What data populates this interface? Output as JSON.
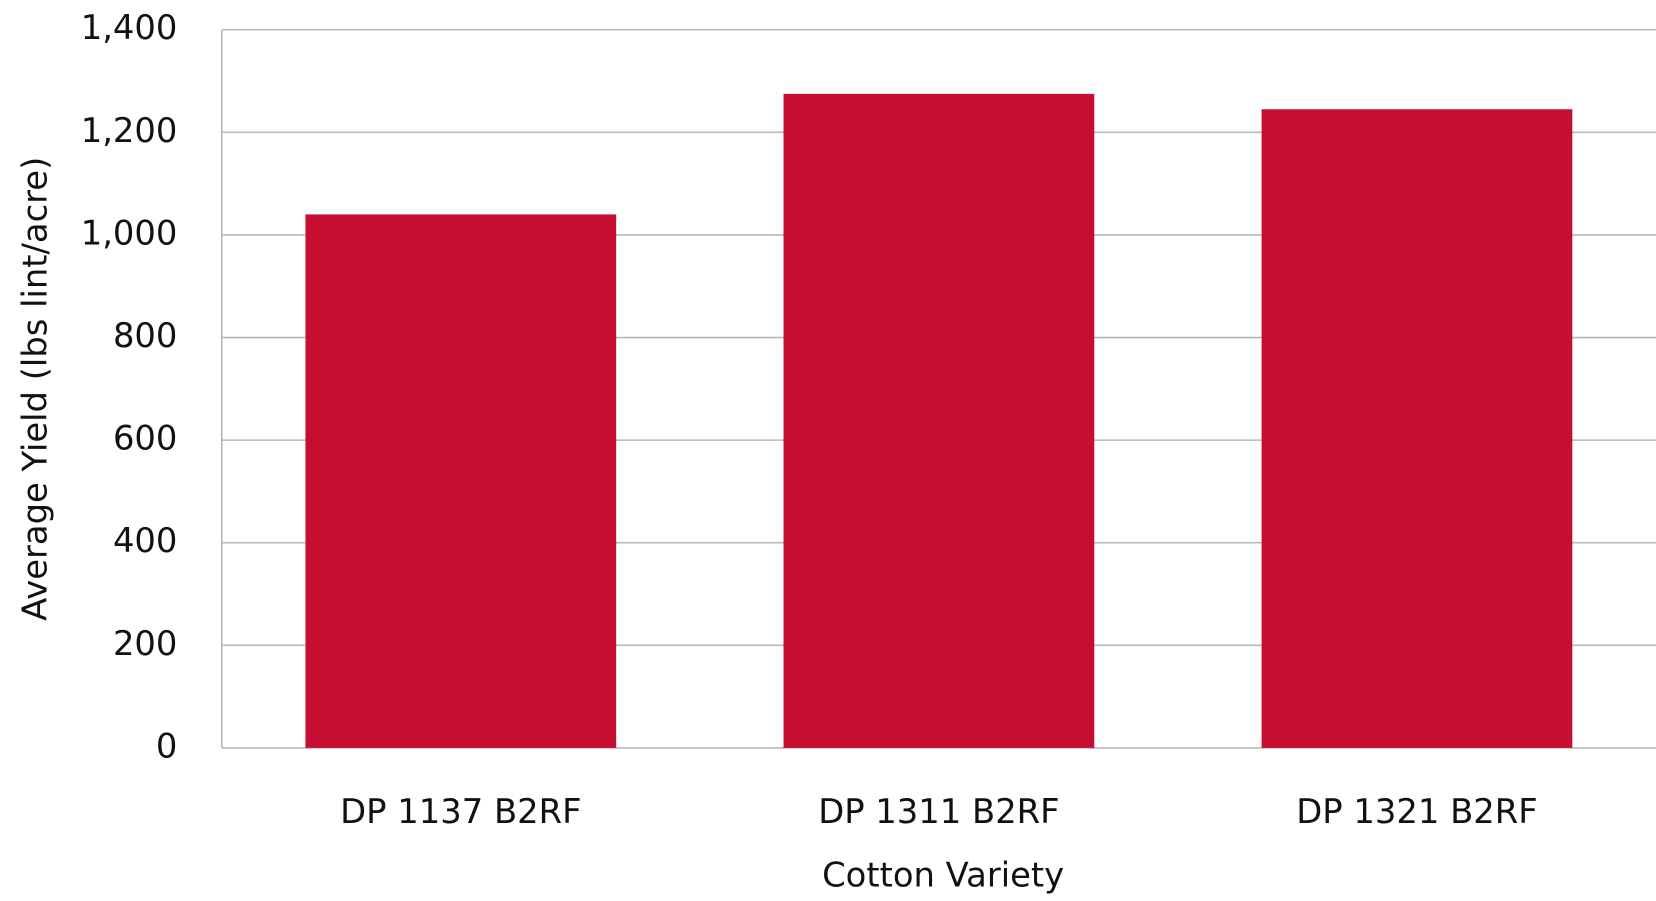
{
  "chart_data": {
    "type": "bar",
    "categories": [
      "DP 1137 B2RF",
      "DP 1311 B2RF",
      "DP 1321 B2RF"
    ],
    "values": [
      1040,
      1275,
      1245
    ],
    "color": "#c50e32",
    "xlabel": "Cotton Variety",
    "ylabel": "Average Yield (lbs lint/acre)",
    "ylim": [
      0,
      1400
    ],
    "yticks": [
      0,
      200,
      400,
      600,
      800,
      {
        "value": 1000,
        "label": "1,000"
      },
      {
        "value": 1200,
        "label": "1,200"
      },
      {
        "value": 1400,
        "label": "1,400"
      }
    ],
    "grid": true
  }
}
